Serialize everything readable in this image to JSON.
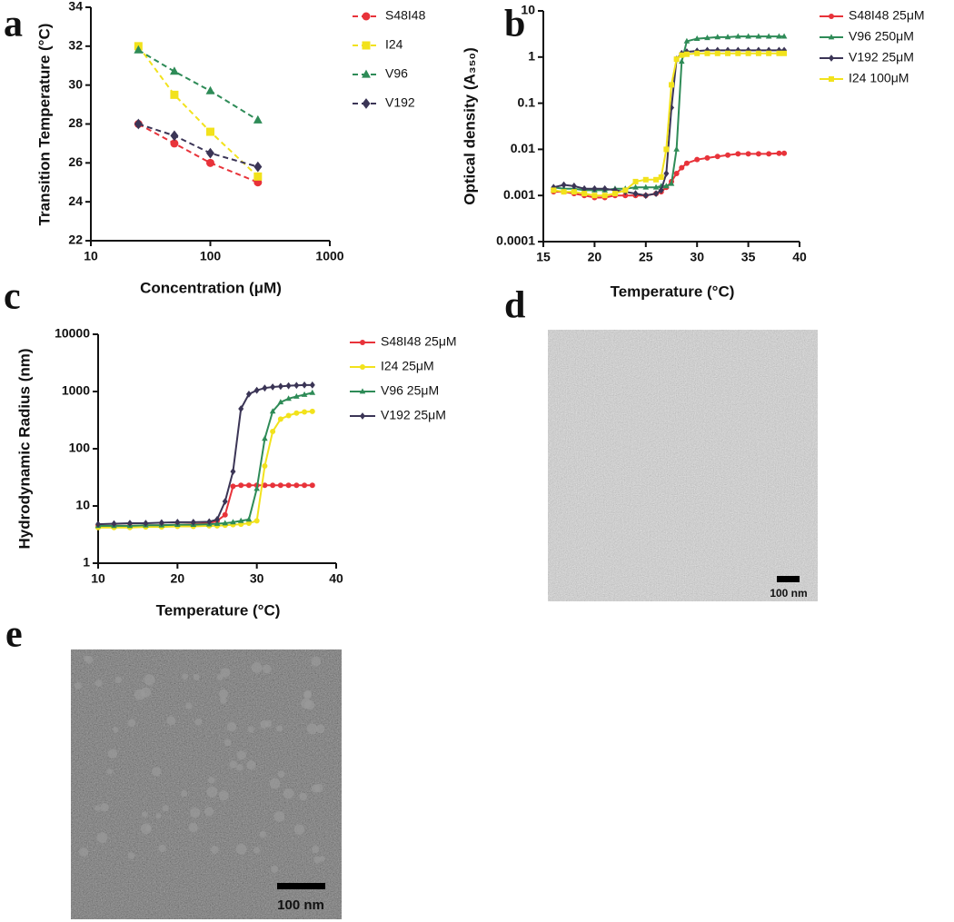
{
  "panels": [
    "a",
    "b",
    "c",
    "d",
    "e"
  ],
  "micrographs": [
    {
      "scale_bar": "100 nm"
    },
    {
      "scale_bar": "100 nm"
    }
  ],
  "chart_data": [
    {
      "type": "line",
      "xlabel": "Concentration (μM)",
      "ylabel": "Transition Temperature (°C)",
      "x": [
        25,
        50,
        100,
        250
      ],
      "xscale": "log",
      "line_style": "dashed",
      "xlim": [
        10,
        1000
      ],
      "xticks": [
        10,
        100,
        1000
      ],
      "ylim": [
        22,
        34
      ],
      "yticks": [
        22,
        24,
        26,
        28,
        30,
        32,
        34
      ],
      "series": [
        {
          "name": "S48I48",
          "color": "#e8333a",
          "marker": "circle",
          "values": [
            28,
            27,
            26,
            25
          ]
        },
        {
          "name": "I24",
          "color": "#f2e21c",
          "marker": "square",
          "values": [
            32,
            29.5,
            27.6,
            25.3
          ]
        },
        {
          "name": "V96",
          "color": "#2e8b57",
          "marker": "triangle",
          "values": [
            31.8,
            30.7,
            29.7,
            28.2
          ]
        },
        {
          "name": "V192",
          "color": "#3b3556",
          "marker": "diamond",
          "values": [
            28,
            27.4,
            26.5,
            25.8
          ]
        }
      ]
    },
    {
      "type": "line",
      "xlabel": "Temperature (°C)",
      "ylabel": "Optical density (A₃₅₀)",
      "x": [
        16,
        17,
        18,
        19,
        20,
        21,
        22,
        23,
        24,
        25,
        26,
        26.5,
        27,
        27.5,
        28,
        28.5,
        29,
        30,
        31,
        32,
        33,
        34,
        35,
        36,
        37,
        38,
        38.5
      ],
      "yscale": "log",
      "line_style": "solid",
      "xlim": [
        15,
        40
      ],
      "xticks": [
        15,
        20,
        25,
        30,
        35,
        40
      ],
      "ylim": [
        0.0001,
        10
      ],
      "yticks": [
        0.0001,
        0.001,
        0.01,
        0.1,
        1,
        10
      ],
      "series": [
        {
          "name": "S48I48 25μM",
          "color": "#e8333a",
          "marker": "circle",
          "values": [
            0.0012,
            0.0012,
            0.0011,
            0.001,
            0.0009,
            0.0009,
            0.001,
            0.001,
            0.001,
            0.001,
            0.0011,
            0.0012,
            0.0015,
            0.002,
            0.003,
            0.004,
            0.005,
            0.006,
            0.0065,
            0.007,
            0.0075,
            0.008,
            0.008,
            0.008,
            0.008,
            0.0082,
            0.0082
          ]
        },
        {
          "name": "V96 250μM",
          "color": "#2e8b57",
          "marker": "triangle",
          "values": [
            0.0015,
            0.0014,
            0.0014,
            0.0013,
            0.0013,
            0.0013,
            0.0014,
            0.0014,
            0.0015,
            0.0015,
            0.0015,
            0.0016,
            0.0016,
            0.0018,
            0.01,
            0.8,
            2.2,
            2.5,
            2.6,
            2.7,
            2.7,
            2.8,
            2.8,
            2.8,
            2.8,
            2.8,
            2.8
          ]
        },
        {
          "name": "V192 25μM",
          "color": "#3b3556",
          "marker": "diamond",
          "values": [
            0.0015,
            0.0017,
            0.0016,
            0.0014,
            0.0014,
            0.0014,
            0.0013,
            0.0012,
            0.0011,
            0.001,
            0.0011,
            0.0013,
            0.003,
            0.08,
            0.9,
            1.2,
            1.3,
            1.35,
            1.4,
            1.4,
            1.4,
            1.4,
            1.4,
            1.4,
            1.4,
            1.4,
            1.4
          ]
        },
        {
          "name": "I24 100μM",
          "color": "#f2e21c",
          "marker": "square",
          "values": [
            0.0013,
            0.0012,
            0.0012,
            0.0011,
            0.001,
            0.001,
            0.0011,
            0.0013,
            0.002,
            0.0022,
            0.0022,
            0.0025,
            0.01,
            0.25,
            0.9,
            1.1,
            1.15,
            1.2,
            1.2,
            1.2,
            1.2,
            1.2,
            1.2,
            1.2,
            1.2,
            1.2,
            1.2
          ]
        }
      ]
    },
    {
      "type": "line",
      "xlabel": "Temperature (°C)",
      "ylabel": "Hydrodynamic Radius (nm)",
      "x": [
        10,
        12,
        14,
        16,
        18,
        20,
        22,
        24,
        25,
        26,
        27,
        28,
        29,
        30,
        31,
        32,
        33,
        34,
        35,
        36,
        37
      ],
      "yscale": "log",
      "line_style": "solid",
      "xlim": [
        10,
        40
      ],
      "xticks": [
        10,
        20,
        30,
        40
      ],
      "ylim": [
        1,
        10000
      ],
      "yticks": [
        1,
        10,
        100,
        1000,
        10000
      ],
      "series": [
        {
          "name": "S48I48 25μM",
          "color": "#e8333a",
          "marker": "circle",
          "values": [
            4.5,
            4.5,
            4.5,
            4.6,
            4.6,
            4.7,
            4.8,
            5,
            5.5,
            7,
            22,
            23,
            23,
            23,
            23,
            23,
            23,
            23,
            23,
            23,
            23
          ]
        },
        {
          "name": "I24 25μM",
          "color": "#f2e21c",
          "marker": "circle",
          "values": [
            4.2,
            4.2,
            4.2,
            4.3,
            4.3,
            4.4,
            4.4,
            4.5,
            4.5,
            4.6,
            4.7,
            4.8,
            5,
            5.5,
            50,
            200,
            330,
            380,
            420,
            440,
            450
          ]
        },
        {
          "name": "V96 25μM",
          "color": "#2e8b57",
          "marker": "triangle",
          "values": [
            4.5,
            4.5,
            4.5,
            4.6,
            4.6,
            4.7,
            4.7,
            4.8,
            4.9,
            5,
            5.2,
            5.5,
            5.8,
            20,
            150,
            450,
            650,
            750,
            820,
            880,
            950
          ]
        },
        {
          "name": "V192 25μM",
          "color": "#3b3556",
          "marker": "diamond",
          "values": [
            4.8,
            4.9,
            5,
            5,
            5.1,
            5.2,
            5.2,
            5.3,
            5.8,
            12,
            40,
            500,
            900,
            1050,
            1150,
            1200,
            1230,
            1260,
            1280,
            1300,
            1300
          ]
        }
      ]
    }
  ]
}
